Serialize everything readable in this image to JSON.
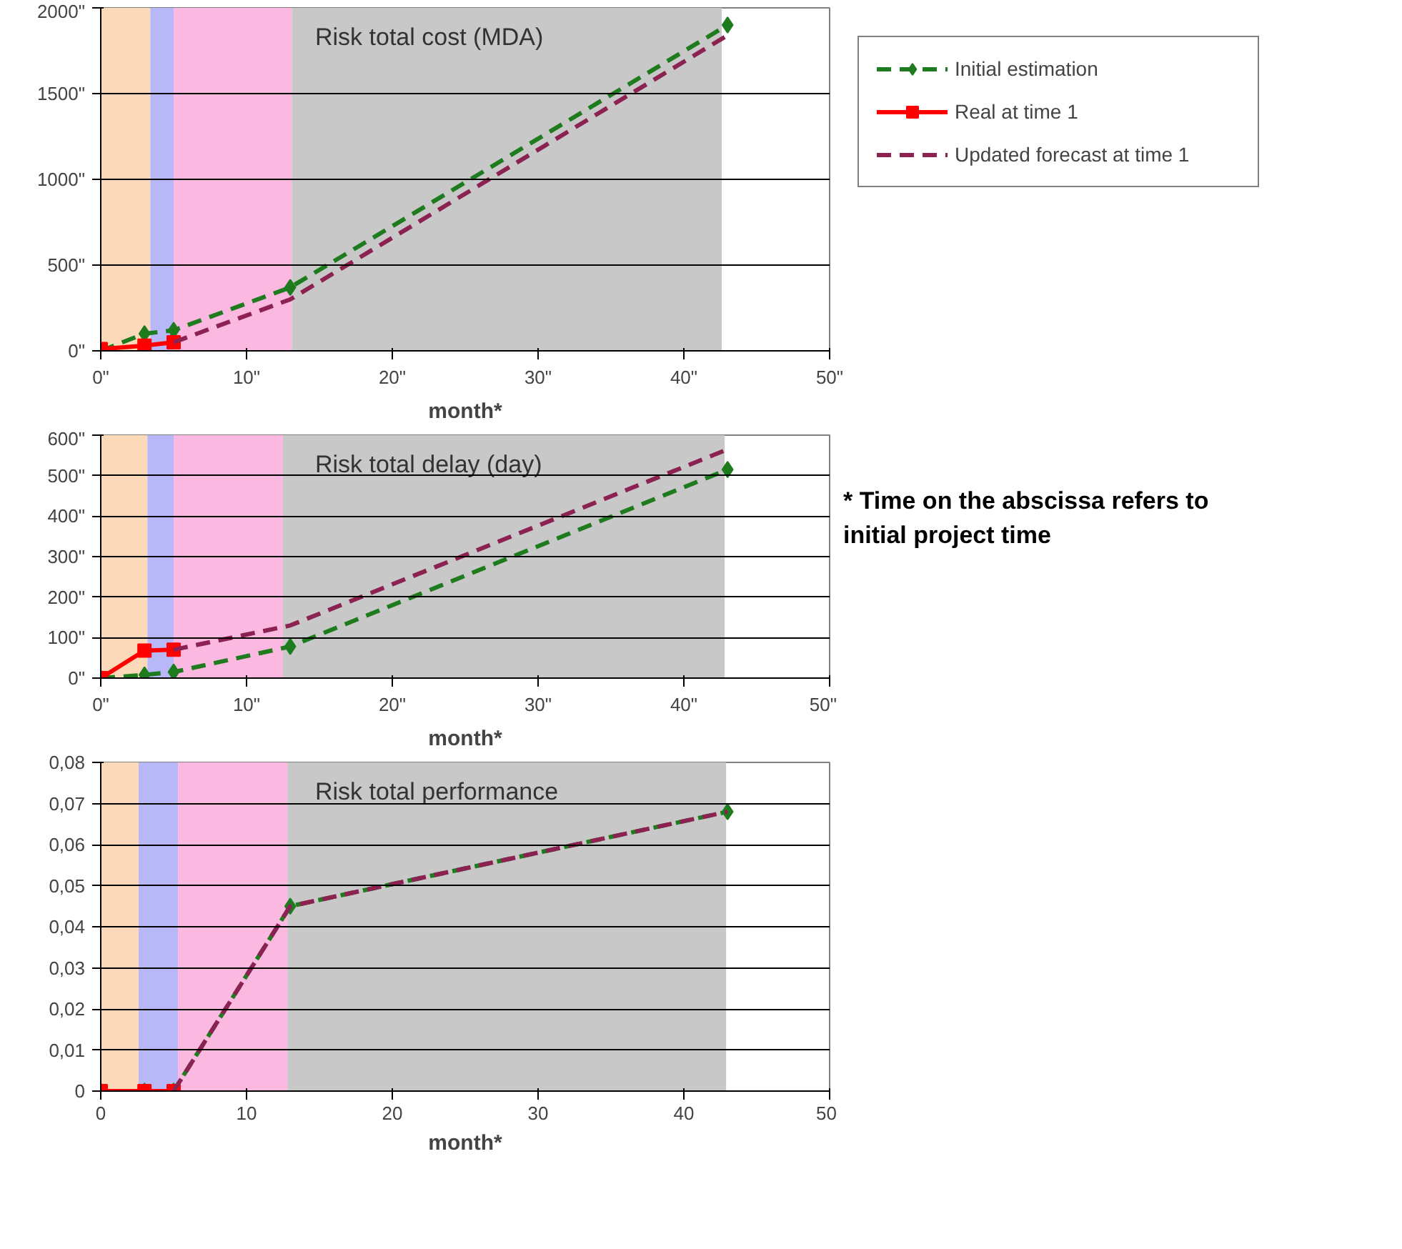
{
  "chart_data": [
    {
      "type": "line",
      "title": "Risk total cost (MDA)",
      "xlabel": "month*",
      "xlim": [
        0,
        50
      ],
      "ylim": [
        0,
        2000
      ],
      "xticks": [
        {
          "value": 0,
          "label": "0\""
        },
        {
          "value": 10,
          "label": "10\""
        },
        {
          "value": 20,
          "label": "20\""
        },
        {
          "value": 30,
          "label": "30\""
        },
        {
          "value": 40,
          "label": "40\""
        },
        {
          "value": 50,
          "label": "50\""
        }
      ],
      "yticks": [
        {
          "value": 0,
          "label": "0\""
        },
        {
          "value": 500,
          "label": "500\""
        },
        {
          "value": 1000,
          "label": "1000\""
        },
        {
          "value": 1500,
          "label": "1500\""
        },
        {
          "value": 2000,
          "label": "2000\""
        }
      ],
      "grid": "y",
      "legend": "right",
      "bands": [
        {
          "axis": "x",
          "from": 0,
          "to": 3.4,
          "color": "#fcd9b8"
        },
        {
          "axis": "x",
          "from": 3.4,
          "to": 5,
          "color": "#b8b8f8"
        },
        {
          "axis": "x",
          "from": 5,
          "to": 13.1,
          "color": "#fbb8e0"
        },
        {
          "axis": "x",
          "from": 13.1,
          "to": 42.6,
          "color": "#c8c8c8"
        }
      ],
      "series": [
        {
          "name": "Initial estimation",
          "color": "#1e7b1e",
          "x": [
            0,
            3,
            5,
            13,
            43
          ],
          "values": [
            0,
            100,
            120,
            370,
            1900
          ],
          "marker": "diamond",
          "line_style": "dashed"
        },
        {
          "name": "Real at time 1",
          "color": "#ff0000",
          "x": [
            0,
            3,
            5
          ],
          "values": [
            10,
            30,
            50
          ],
          "marker": "square",
          "line_style": "solid"
        },
        {
          "name": "Updated forecast at time 1",
          "color": "#8b2252",
          "x": [
            5,
            13,
            43
          ],
          "values": [
            50,
            300,
            1840
          ],
          "marker": "none",
          "line_style": "dashed"
        }
      ]
    },
    {
      "type": "line",
      "title": "Risk total delay (day)",
      "xlabel": "month*",
      "xlim": [
        0,
        50
      ],
      "ylim": [
        0,
        600
      ],
      "xticks": [
        {
          "value": 0,
          "label": "0\""
        },
        {
          "value": 10,
          "label": "10\""
        },
        {
          "value": 20,
          "label": "20\""
        },
        {
          "value": 30,
          "label": "30\""
        },
        {
          "value": 40,
          "label": "40\""
        },
        {
          "value": 50,
          "label": "50\""
        }
      ],
      "yticks": [
        {
          "value": 0,
          "label": "0\""
        },
        {
          "value": 100,
          "label": "100\""
        },
        {
          "value": 200,
          "label": "200\""
        },
        {
          "value": 300,
          "label": "300\""
        },
        {
          "value": 400,
          "label": "400\""
        },
        {
          "value": 500,
          "label": "500\""
        },
        {
          "value": 600,
          "label": "600\""
        }
      ],
      "grid": "y",
      "annotations": [
        "* Time on the abscissa refers to initial project time"
      ],
      "bands": [
        {
          "axis": "x",
          "from": 0,
          "to": 3.2,
          "color": "#fcd9b8"
        },
        {
          "axis": "x",
          "from": 3.2,
          "to": 5,
          "color": "#b8b8f8"
        },
        {
          "axis": "x",
          "from": 5,
          "to": 12.5,
          "color": "#fbb8e0"
        },
        {
          "axis": "x",
          "from": 12.5,
          "to": 42.8,
          "color": "#c8c8c8"
        }
      ],
      "series": [
        {
          "color": "#1e7b1e",
          "x": [
            0,
            3,
            5,
            13,
            43
          ],
          "values": [
            0,
            8,
            15,
            78,
            515
          ],
          "marker": "diamond",
          "line_style": "dashed"
        },
        {
          "color": "#ff0000",
          "x": [
            0,
            3,
            5
          ],
          "values": [
            0,
            68,
            70
          ],
          "marker": "square",
          "line_style": "solid"
        },
        {
          "color": "#8b2252",
          "x": [
            5,
            13,
            43
          ],
          "values": [
            70,
            130,
            565
          ],
          "marker": "none",
          "line_style": "dashed"
        }
      ]
    },
    {
      "type": "line",
      "title": "Risk total performance",
      "xlabel": "month*",
      "xlim": [
        0,
        50
      ],
      "ylim": [
        0,
        0.08
      ],
      "xticks": [
        0,
        10,
        20,
        30,
        40,
        50
      ],
      "yticks": [
        0,
        {
          "value": 0.01,
          "label": "0,01"
        },
        {
          "value": 0.02,
          "label": "0,02"
        },
        {
          "value": 0.03,
          "label": "0,03"
        },
        {
          "value": 0.04,
          "label": "0,04"
        },
        {
          "value": 0.05,
          "label": "0,05"
        },
        {
          "value": 0.06,
          "label": "0,06"
        },
        {
          "value": 0.07,
          "label": "0,07"
        },
        {
          "value": 0.08,
          "label": "0,08"
        }
      ],
      "grid": "y",
      "bands": [
        {
          "axis": "x",
          "from": 0,
          "to": 2.6,
          "color": "#fcd9b8"
        },
        {
          "axis": "x",
          "from": 2.6,
          "to": 5.3,
          "color": "#b8b8f8"
        },
        {
          "axis": "x",
          "from": 5.3,
          "to": 12.8,
          "color": "#fbb8e0"
        },
        {
          "axis": "x",
          "from": 12.8,
          "to": 42.9,
          "color": "#c8c8c8"
        }
      ],
      "series": [
        {
          "color": "#1e7b1e",
          "x": [
            0,
            3,
            5,
            13,
            43
          ],
          "values": [
            0,
            0,
            0,
            0.045,
            0.068
          ],
          "marker": "diamond",
          "line_style": "dashed"
        },
        {
          "color": "#ff0000",
          "x": [
            0,
            3,
            5
          ],
          "values": [
            0,
            0,
            0
          ],
          "marker": "square",
          "line_style": "solid"
        },
        {
          "color": "#8b2252",
          "x": [
            5,
            13,
            43
          ],
          "values": [
            0,
            0.045,
            0.068
          ],
          "marker": "none",
          "line_style": "dashed"
        }
      ]
    }
  ]
}
